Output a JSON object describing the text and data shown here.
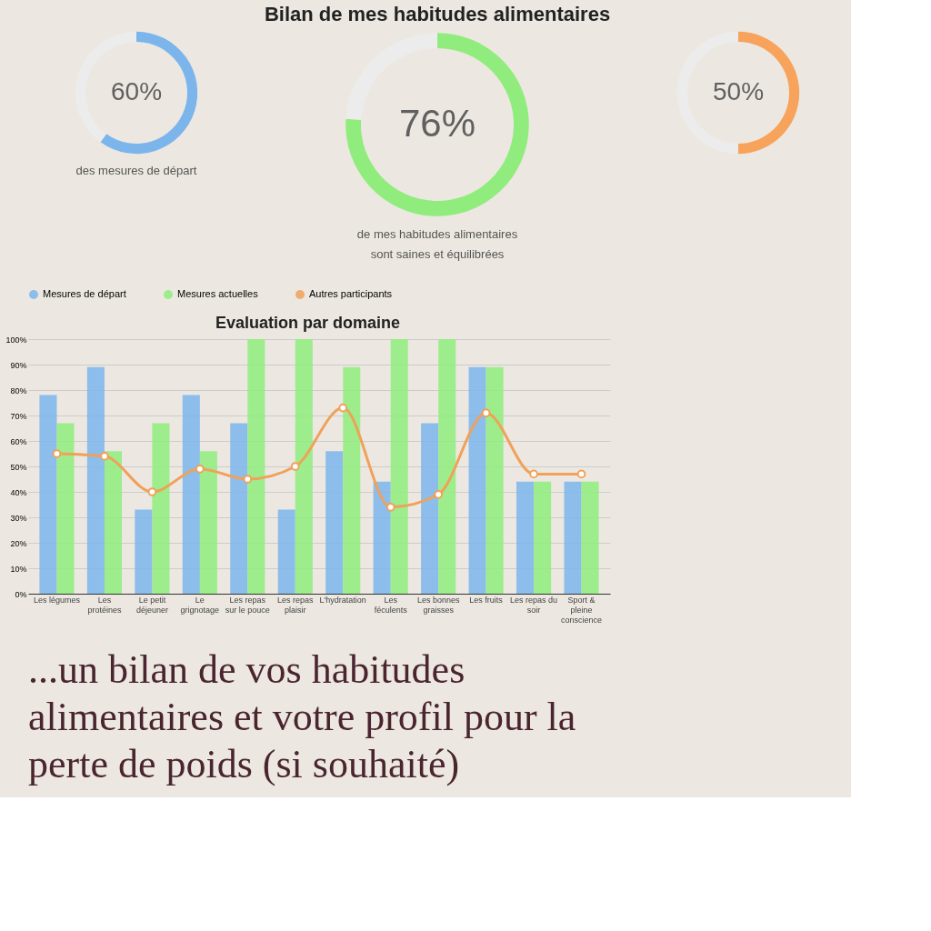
{
  "chart_data": [
    {
      "type": "donut",
      "categories": [
        null,
        null
      ],
      "values": [
        60,
        40
      ],
      "colors": [
        "#7cb5ec",
        "#ececec"
      ],
      "value_labels": [
        "60%",
        null
      ],
      "annotations": [
        "des mesures de départ"
      ]
    },
    {
      "type": "donut",
      "title": "Bilan de mes habitudes alimentaires",
      "categories": [
        null,
        null
      ],
      "values": [
        76,
        24
      ],
      "colors": [
        "#90ed7d",
        "#ececec"
      ],
      "value_labels": [
        "76%",
        null
      ],
      "annotations": [
        "de mes habitudes alimentaires",
        "sont saines et équilibrées"
      ]
    },
    {
      "type": "donut",
      "categories": [
        null,
        null
      ],
      "values": [
        50,
        50
      ],
      "colors": [
        "#f7a35c",
        "#ececec"
      ],
      "value_labels": [
        "50%",
        null
      ]
    },
    {
      "type": "bar",
      "title": "Evaluation par domaine",
      "categories": [
        "Les légumes",
        "Les protéines",
        "Le petit déjeuner",
        "Le grignotage",
        "Les repas sur le pouce",
        "Les repas plaisir",
        "L'hydratation",
        "Les féculents",
        "Les bonnes graisses",
        "Les fruits",
        "Les repas du soir",
        "Sport & pleine conscience"
      ],
      "series": [
        {
          "name": "Mesures de départ",
          "color": "#7cb5ec",
          "values": [
            78,
            89,
            33,
            78,
            67,
            33,
            56,
            44,
            67,
            89,
            44,
            44
          ]
        },
        {
          "name": "Mesures actuelles",
          "color": "#90ed7d",
          "values": [
            67,
            56,
            67,
            56,
            100,
            100,
            89,
            100,
            100,
            89,
            44,
            44
          ]
        },
        {
          "name": "Autres participants",
          "type": "line",
          "color": "#f0a15a",
          "values": [
            55,
            54,
            40,
            49,
            45,
            50,
            73,
            34,
            39,
            71,
            47,
            47
          ]
        }
      ],
      "ylim": [
        0,
        100
      ],
      "yticks": [
        {
          "value": 0,
          "label": "0%"
        },
        {
          "value": 10,
          "label": "10%"
        },
        {
          "value": 20,
          "label": "20%"
        },
        {
          "value": 30,
          "label": "30%"
        },
        {
          "value": 40,
          "label": "40%"
        },
        {
          "value": 50,
          "label": "50%"
        },
        {
          "value": 60,
          "label": "60%"
        },
        {
          "value": 70,
          "label": "70%"
        },
        {
          "value": 80,
          "label": "80%"
        },
        {
          "value": 90,
          "label": "90%"
        },
        {
          "value": 100,
          "label": "100%"
        }
      ],
      "grid": "y",
      "legend": "top",
      "marker": "circle",
      "annotations": [
        "...un bilan de vos habitudes alimentaires et votre profil pour la perte de poids (si souhaité)"
      ]
    }
  ]
}
